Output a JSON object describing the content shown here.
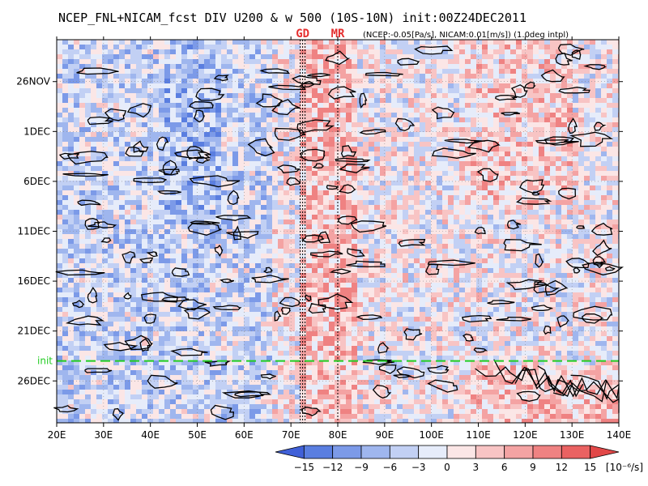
{
  "title": "NCEP_FNL+NICAM_fcst DIV U200 & w 500 (10S-10N) init:00Z24DEC2011",
  "subtitle": "(NCEP:-0.05[Pa/s], NICAM:0.01[m/s]) (1.0deg intpl)",
  "chart_data": {
    "type": "heatmap",
    "x_axis": {
      "ticks": [
        20,
        30,
        40,
        50,
        60,
        70,
        80,
        90,
        100,
        110,
        120,
        130,
        140
      ],
      "tick_labels": [
        "20E",
        "30E",
        "40E",
        "50E",
        "60E",
        "70E",
        "80E",
        "90E",
        "100E",
        "110E",
        "120E",
        "130E",
        "140E"
      ],
      "range": [
        20,
        140
      ]
    },
    "y_axis": {
      "ticks": [
        {
          "label": "26NOV",
          "day": 26
        },
        {
          "label": "1DEC",
          "day": 31
        },
        {
          "label": "6DEC",
          "day": 36
        },
        {
          "label": "11DEC",
          "day": 41
        },
        {
          "label": "16DEC",
          "day": 46
        },
        {
          "label": "21DEC",
          "day": 51
        },
        {
          "label": "26DEC",
          "day": 56
        }
      ],
      "range_days": [
        21.8,
        60.2
      ]
    },
    "init_line": {
      "label": "init",
      "day": 54,
      "color": "#22cc22"
    },
    "markers": [
      {
        "label": "GD",
        "lon": 72.5
      },
      {
        "label": "MR",
        "lon": 80
      }
    ],
    "colorbar": {
      "levels": [
        -15,
        -12,
        -9,
        -6,
        -3,
        0,
        3,
        6,
        9,
        12,
        15
      ],
      "tick_labels": [
        "-15",
        "-12",
        "-9",
        "-6",
        "-3",
        "0",
        "3",
        "6",
        "9",
        "12",
        "15"
      ],
      "unit": "[10⁻⁶/s]",
      "colors": [
        "#4060d8",
        "#5a7ee0",
        "#7c9ae8",
        "#9fb6ee",
        "#c2d0f4",
        "#e6ecfa",
        "#fbe6e6",
        "#f8c4c4",
        "#f4a3a3",
        "#ef8282",
        "#ea6262",
        "#e24848"
      ]
    },
    "grid": true
  }
}
